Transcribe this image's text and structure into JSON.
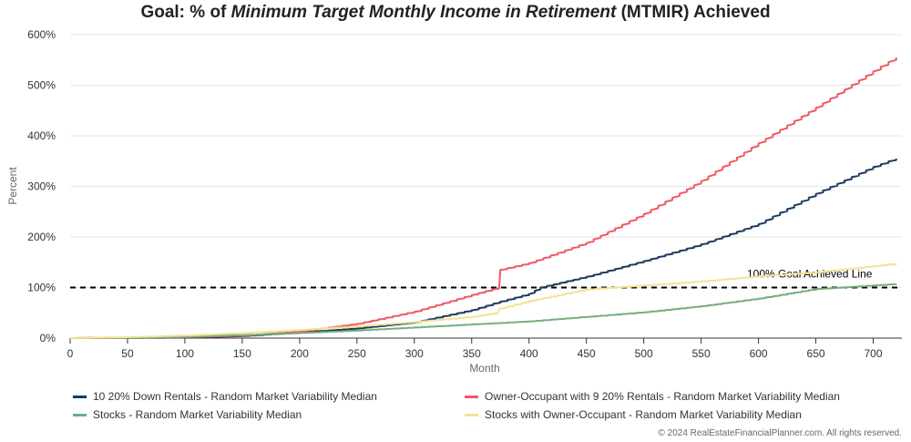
{
  "title": {
    "prefix": "Goal: % of ",
    "emphasis": "Minimum Target Monthly Income in Retirement",
    "suffix": " (MTMIR) Achieved"
  },
  "copyright": "© 2024 RealEstateFinancialPlanner.com. All rights reserved.",
  "chart_data": {
    "type": "line",
    "title": "Goal: % of Minimum Target Monthly Income in Retirement (MTMIR) Achieved",
    "xlabel": "Month",
    "ylabel": "Percent",
    "xlim": [
      0,
      725
    ],
    "ylim": [
      0,
      600
    ],
    "x_ticks": [
      0,
      50,
      100,
      150,
      200,
      250,
      300,
      350,
      400,
      450,
      500,
      550,
      600,
      650,
      700
    ],
    "y_ticks": [
      0,
      100,
      200,
      300,
      400,
      500,
      600
    ],
    "y_tick_labels": [
      "0%",
      "100%",
      "200%",
      "300%",
      "400%",
      "500%",
      "600%"
    ],
    "grid": "horizontal",
    "legend_position": "bottom",
    "reference_line": {
      "y": 100,
      "label": "100% Goal Achieved Line",
      "style": "dashed",
      "color": "#000000"
    },
    "series": [
      {
        "name": "10 20% Down Rentals - Random Market Variability Median",
        "color": "#1d3a5c",
        "points": [
          [
            0,
            0
          ],
          [
            100,
            1
          ],
          [
            150,
            4
          ],
          [
            200,
            11
          ],
          [
            250,
            19
          ],
          [
            300,
            31
          ],
          [
            350,
            55
          ],
          [
            375,
            72
          ],
          [
            400,
            87
          ],
          [
            410,
            100
          ],
          [
            450,
            121
          ],
          [
            500,
            152
          ],
          [
            550,
            185
          ],
          [
            600,
            225
          ],
          [
            650,
            285
          ],
          [
            700,
            338
          ],
          [
            720,
            355
          ]
        ]
      },
      {
        "name": "Owner-Occupant with 9 20% Rentals - Random Market Variability Median",
        "color": "#ee5a64",
        "points": [
          [
            0,
            0
          ],
          [
            100,
            2
          ],
          [
            150,
            5
          ],
          [
            200,
            13
          ],
          [
            250,
            28
          ],
          [
            300,
            52
          ],
          [
            350,
            85
          ],
          [
            374,
            100
          ],
          [
            375,
            135
          ],
          [
            400,
            148
          ],
          [
            450,
            188
          ],
          [
            500,
            245
          ],
          [
            550,
            310
          ],
          [
            600,
            385
          ],
          [
            650,
            455
          ],
          [
            700,
            527
          ],
          [
            720,
            555
          ]
        ]
      },
      {
        "name": "Stocks - Random Market Variability Median",
        "color": "#74ad7f",
        "points": [
          [
            0,
            0
          ],
          [
            50,
            1
          ],
          [
            100,
            3
          ],
          [
            150,
            6
          ],
          [
            200,
            10
          ],
          [
            250,
            15
          ],
          [
            300,
            21
          ],
          [
            350,
            27
          ],
          [
            400,
            33
          ],
          [
            450,
            42
          ],
          [
            500,
            51
          ],
          [
            550,
            63
          ],
          [
            600,
            78
          ],
          [
            650,
            97
          ],
          [
            700,
            104
          ],
          [
            720,
            107
          ]
        ]
      },
      {
        "name": "Stocks with Owner-Occupant - Random Market Variability Median",
        "color": "#f2e394",
        "points": [
          [
            0,
            0
          ],
          [
            50,
            2
          ],
          [
            100,
            5
          ],
          [
            150,
            10
          ],
          [
            200,
            16
          ],
          [
            250,
            23
          ],
          [
            300,
            32
          ],
          [
            350,
            42
          ],
          [
            373,
            50
          ],
          [
            374,
            58
          ],
          [
            400,
            73
          ],
          [
            450,
            96
          ],
          [
            500,
            104
          ],
          [
            550,
            112
          ],
          [
            600,
            122
          ],
          [
            650,
            130
          ],
          [
            700,
            142
          ],
          [
            720,
            147
          ]
        ]
      }
    ]
  }
}
